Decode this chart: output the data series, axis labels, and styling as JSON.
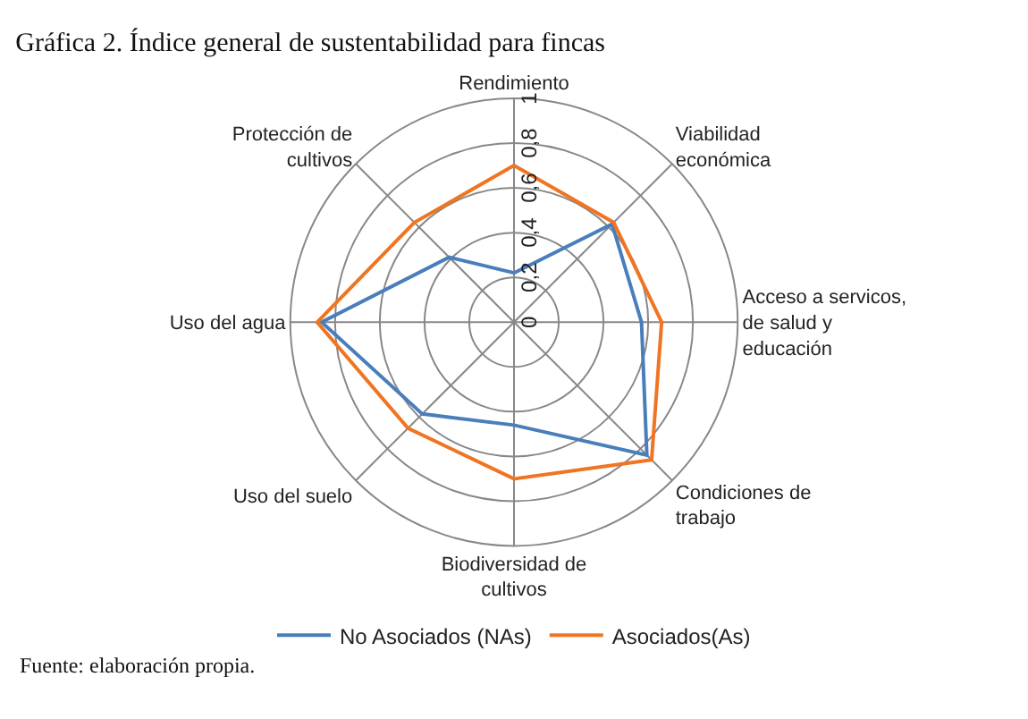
{
  "chart_data": {
    "type": "radar",
    "title": "Gráfica 2. Índice general de sustentabilidad para fincas",
    "categories": [
      "Rendimiento",
      "Viabilidad económica",
      "Acceso a servicos, de salud y educación",
      "Condiciones de trabajo",
      "Biodiversidad de cultivos",
      "Uso del suelo",
      "Uso del agua",
      "Protección de cultivos"
    ],
    "series": [
      {
        "name": "No Asociados (NAs)",
        "color": "#4a7ebb",
        "values": [
          0.22,
          0.62,
          0.57,
          0.84,
          0.46,
          0.58,
          0.86,
          0.41
        ]
      },
      {
        "name": "Asociados(As)",
        "color": "#f07522",
        "values": [
          0.7,
          0.63,
          0.66,
          0.87,
          0.7,
          0.67,
          0.88,
          0.63
        ]
      }
    ],
    "ylim": [
      0,
      1
    ],
    "yticks": [
      0,
      {
        "value": 0.2,
        "label": "0,2"
      },
      {
        "value": 0.4,
        "label": "0,4"
      },
      {
        "value": 0.6,
        "label": "0,6"
      },
      {
        "value": 0.8,
        "label": "0,8"
      },
      1
    ],
    "legend": "bottom",
    "marker": "none",
    "annotations": [
      "Fuente: elaboración propia."
    ]
  }
}
